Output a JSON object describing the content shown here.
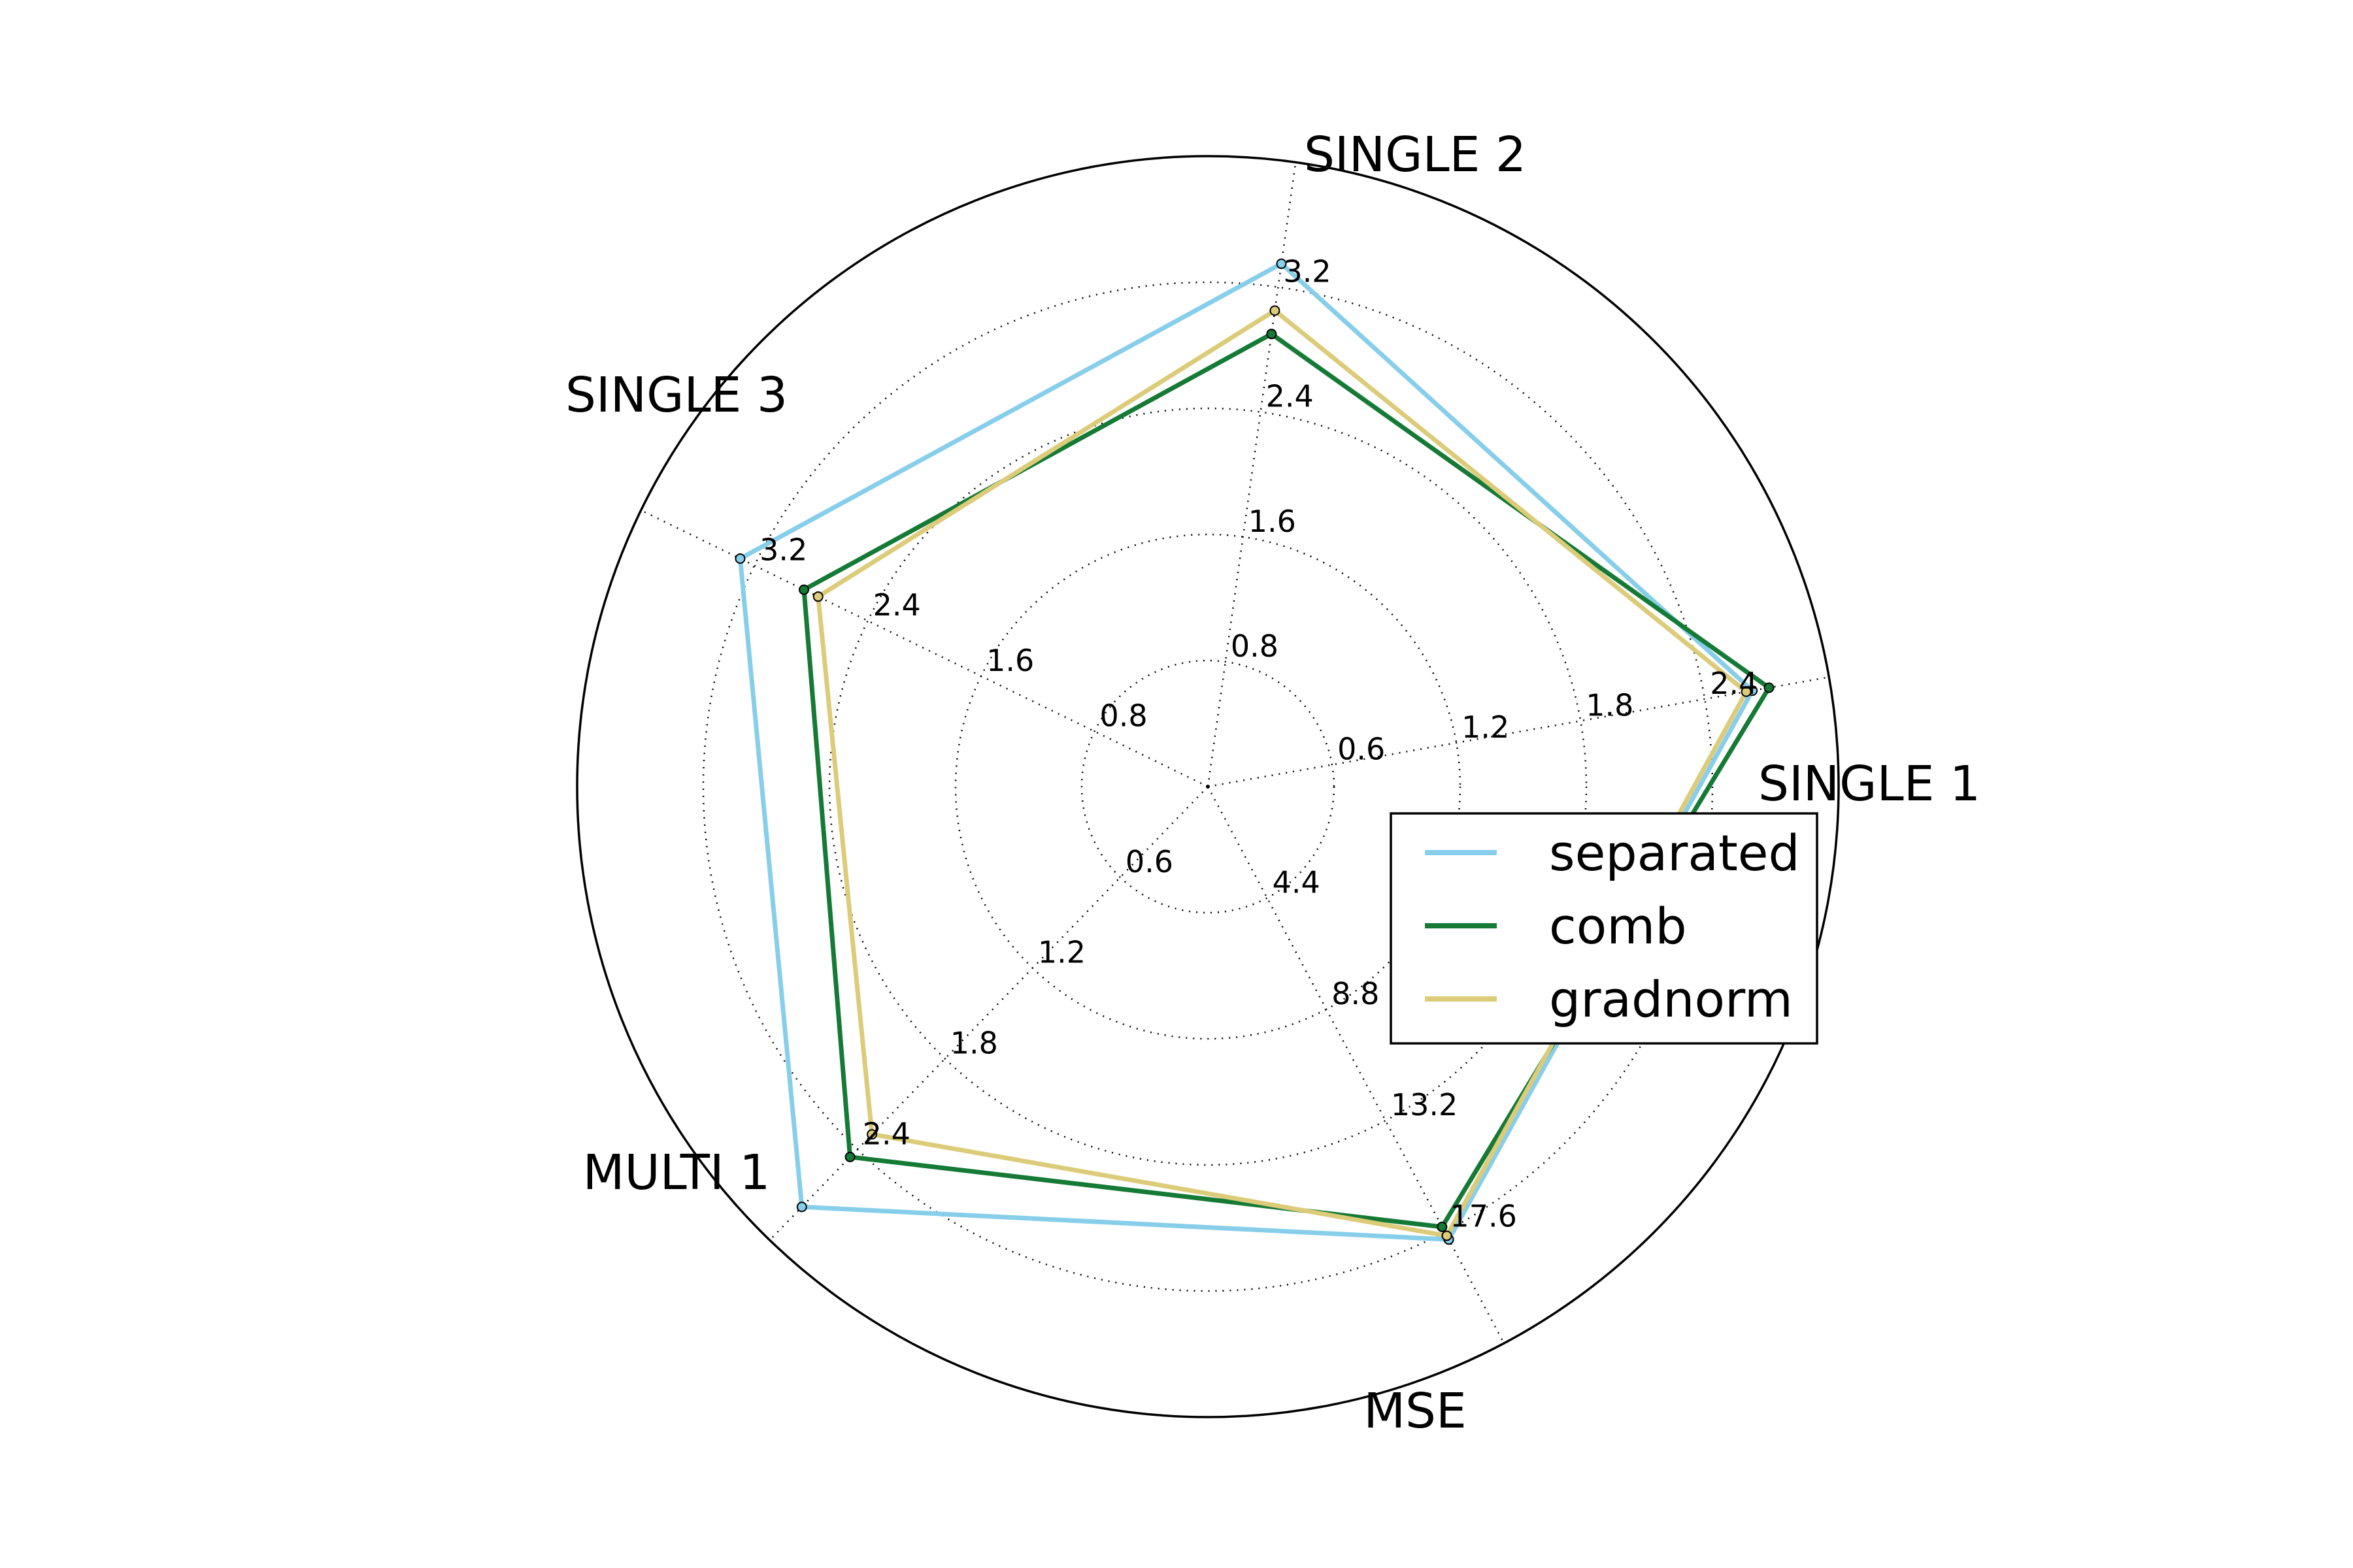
{
  "chart_data": {
    "type": "radar",
    "axes": [
      {
        "name": "SINGLE 1",
        "ticks": [
          "0.6",
          "1.2",
          "1.8",
          "2.4"
        ],
        "tick_values": [
          0.6,
          1.2,
          1.8,
          2.4
        ],
        "range": [
          0,
          3.0
        ]
      },
      {
        "name": "SINGLE 2",
        "ticks": [
          "0.8",
          "1.6",
          "2.4",
          "3.2"
        ],
        "tick_values": [
          0.8,
          1.6,
          2.4,
          3.2
        ],
        "range": [
          0,
          4.0
        ]
      },
      {
        "name": "SINGLE 3",
        "ticks": [
          "0.8",
          "1.6",
          "2.4",
          "3.2"
        ],
        "tick_values": [
          0.8,
          1.6,
          2.4,
          3.2
        ],
        "range": [
          0,
          4.0
        ]
      },
      {
        "name": "MULTI 1",
        "ticks": [
          "0.6",
          "1.2",
          "1.8",
          "2.4"
        ],
        "tick_values": [
          0.6,
          1.2,
          1.8,
          2.4
        ],
        "range": [
          0,
          3.0
        ]
      },
      {
        "name": "MSE",
        "ticks": [
          "4.4",
          "8.8",
          "13.2",
          "17.6"
        ],
        "tick_values": [
          4.4,
          8.8,
          13.2,
          17.6
        ],
        "range": [
          0,
          22.0
        ]
      }
    ],
    "series": [
      {
        "name": "separated",
        "color": "#87ceeb",
        "values": [
          2.63,
          3.35,
          3.3,
          2.78,
          17.9
        ]
      },
      {
        "name": "comb",
        "color": "#157a35",
        "values": [
          2.71,
          2.9,
          2.85,
          2.45,
          17.4
        ]
      },
      {
        "name": "gradnorm",
        "color": "#dccc7a",
        "values": [
          2.6,
          3.05,
          2.75,
          2.3,
          17.75
        ]
      }
    ],
    "grid": true,
    "legend_position": "right"
  }
}
